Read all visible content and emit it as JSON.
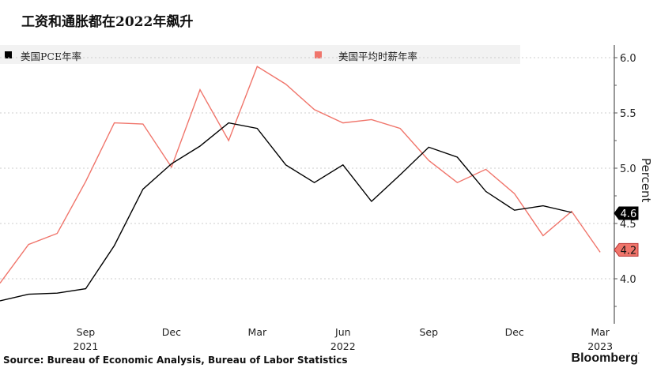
{
  "title": "工资和通胀都在2022年飙升",
  "source": "Source: Bureau of Economic Analysis, Bureau of Labor Statistics",
  "logo": "Bloomberg",
  "chart_data": {
    "type": "line",
    "title": "工资和通胀都在2022年飙升",
    "ylabel": "Percent",
    "ylim": [
      3.8,
      6.2
    ],
    "yticks": [
      "4.0",
      "4.5",
      "5.0",
      "5.5",
      "6.0"
    ],
    "ytick_values": [
      4.0,
      4.5,
      5.0,
      5.5,
      6.0
    ],
    "legend_position": "top",
    "grid": true,
    "x": [
      "2021-06",
      "2021-07",
      "2021-08",
      "2021-09",
      "2021-10",
      "2021-11",
      "2021-12",
      "2022-01",
      "2022-02",
      "2022-03",
      "2022-04",
      "2022-05",
      "2022-06",
      "2022-07",
      "2022-08",
      "2022-09",
      "2022-10",
      "2022-11",
      "2022-12",
      "2023-01",
      "2023-02",
      "2023-03"
    ],
    "xtick_labels": [
      {
        "label": "Sep",
        "year": "2021",
        "index": 3
      },
      {
        "label": "Dec",
        "year": "",
        "index": 6
      },
      {
        "label": "Mar",
        "year": "",
        "index": 9
      },
      {
        "label": "Jun",
        "year": "2022",
        "index": 12
      },
      {
        "label": "Sep",
        "year": "",
        "index": 15
      },
      {
        "label": "Dec",
        "year": "",
        "index": 18
      },
      {
        "label": "Mar",
        "year": "2023",
        "index": 21
      }
    ],
    "series": [
      {
        "name": "美国PCE年率",
        "color": "#000000",
        "last_label": "4.6",
        "values": [
          3.8,
          3.86,
          3.87,
          3.91,
          4.3,
          4.81,
          5.04,
          5.2,
          5.41,
          5.36,
          5.03,
          4.87,
          5.03,
          4.7,
          4.94,
          5.19,
          5.1,
          4.79,
          4.62,
          4.66,
          4.6,
          null
        ]
      },
      {
        "name": "美国平均时薪年率",
        "color": "#f0756b",
        "last_label": "4.2",
        "values": [
          3.96,
          4.31,
          4.41,
          4.88,
          5.41,
          5.4,
          5.01,
          5.71,
          5.25,
          5.92,
          5.76,
          5.53,
          5.41,
          5.44,
          5.36,
          5.07,
          4.87,
          4.99,
          4.77,
          4.39,
          4.61,
          4.24
        ]
      }
    ]
  }
}
